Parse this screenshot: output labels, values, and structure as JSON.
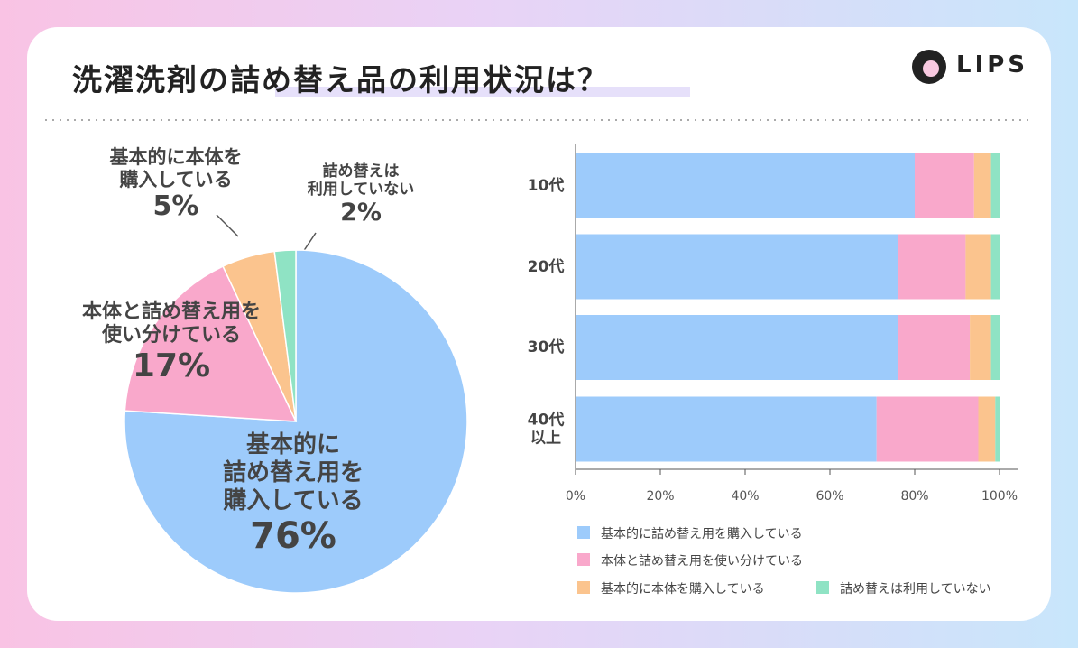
{
  "title": "洗濯洗剤の詰め替え品の利用状況は？",
  "brand": "LIPS",
  "chart_data": [
    {
      "type": "pie",
      "categories": [
        "基本的に\n詰め替え用を\n購入している",
        "本体と詰め替え用を\n使い分けている",
        "基本的に本体を\n購入している",
        "詰め替えは\n利用していない"
      ],
      "values": [
        76,
        17,
        5,
        2
      ],
      "value_labels": [
        "76%",
        "17%",
        "5%",
        "2%"
      ],
      "colors": [
        "#9dcbfb",
        "#f9a8cb",
        "#fbc48e",
        "#8fe3c4"
      ]
    },
    {
      "type": "stacked-barh",
      "categories": [
        "10代",
        "20代",
        "30代",
        "40代\n以上"
      ],
      "series": [
        {
          "name": "基本的に詰め替え用を購入している",
          "color": "#9dcbfb",
          "values": [
            80,
            76,
            76,
            71
          ]
        },
        {
          "name": "本体と詰め替え用を使い分けている",
          "color": "#f9a8cb",
          "values": [
            14,
            16,
            17,
            24
          ]
        },
        {
          "name": "基本的に本体を購入している",
          "color": "#fbc48e",
          "values": [
            4,
            6,
            5,
            4
          ]
        },
        {
          "name": "詰め替えは利用していない",
          "color": "#8fe3c4",
          "values": [
            2,
            2,
            2,
            1
          ]
        }
      ],
      "xlim": [
        0,
        100
      ],
      "xticks": [
        {
          "value": 0,
          "label": "0%"
        },
        {
          "value": 20,
          "label": "20%"
        },
        {
          "value": 40,
          "label": "40%"
        },
        {
          "value": 60,
          "label": "60%"
        },
        {
          "value": 80,
          "label": "80%"
        },
        {
          "value": 100,
          "label": "100%"
        }
      ]
    }
  ]
}
